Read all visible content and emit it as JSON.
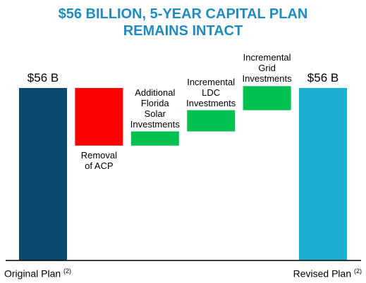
{
  "chart_data": {
    "type": "waterfall",
    "title": "$56 BILLION, 5-YEAR CAPITAL PLAN\nREMAINS INTACT",
    "categories": [
      "Original Plan",
      "Removal\nof ACP",
      "Additional\nFlorida\nSolar\nInvestments",
      "Incremental\nLDC\nInvestments",
      "Incremental\nGrid\nInvestments",
      "Revised Plan"
    ],
    "category_notes": [
      "(2)",
      null,
      null,
      null,
      null,
      "(2)"
    ],
    "values": [
      56,
      -18.7,
      4.6,
      6.9,
      7.8,
      56
    ],
    "value_labels": [
      "$56 B",
      null,
      null,
      null,
      null,
      "$56 B"
    ],
    "totals": [
      true,
      false,
      false,
      false,
      false,
      true
    ],
    "colors": [
      "#0b4a6f",
      "#ff0000",
      "#00c04f",
      "#00c04f",
      "#00c04f",
      "#1aaed0"
    ]
  }
}
